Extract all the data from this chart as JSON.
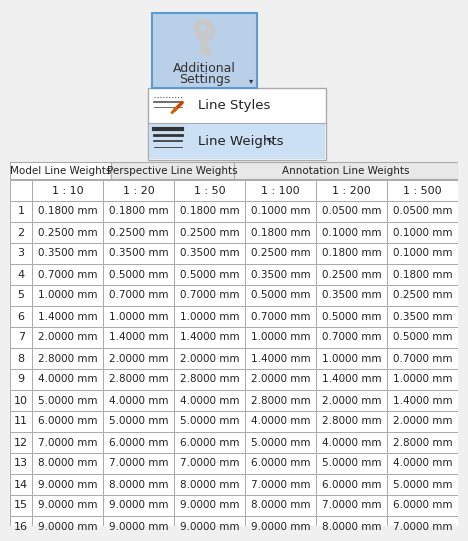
{
  "top_button_text_line1": "Additional",
  "top_button_text_line2": "Settings",
  "menu_item1": "Line Styles",
  "menu_item2": "Line Weights",
  "tabs": [
    "Model Line Weights",
    "Perspective Line Weights",
    "Annotation Line Weights"
  ],
  "col_headers": [
    "",
    "1 : 10",
    "1 : 20",
    "1 : 50",
    "1 : 100",
    "1 : 200",
    "1 : 500"
  ],
  "row_labels": [
    "1",
    "2",
    "3",
    "4",
    "5",
    "6",
    "7",
    "8",
    "9",
    "10",
    "11",
    "12",
    "13",
    "14",
    "15",
    "16"
  ],
  "table_data": [
    [
      "0.1800 mm",
      "0.1800 mm",
      "0.1800 mm",
      "0.1000 mm",
      "0.0500 mm",
      "0.0500 mm"
    ],
    [
      "0.2500 mm",
      "0.2500 mm",
      "0.2500 mm",
      "0.1800 mm",
      "0.1000 mm",
      "0.1000 mm"
    ],
    [
      "0.3500 mm",
      "0.3500 mm",
      "0.3500 mm",
      "0.2500 mm",
      "0.1800 mm",
      "0.1000 mm"
    ],
    [
      "0.7000 mm",
      "0.5000 mm",
      "0.5000 mm",
      "0.3500 mm",
      "0.2500 mm",
      "0.1800 mm"
    ],
    [
      "1.0000 mm",
      "0.7000 mm",
      "0.7000 mm",
      "0.5000 mm",
      "0.3500 mm",
      "0.2500 mm"
    ],
    [
      "1.4000 mm",
      "1.0000 mm",
      "1.0000 mm",
      "0.7000 mm",
      "0.5000 mm",
      "0.3500 mm"
    ],
    [
      "2.0000 mm",
      "1.4000 mm",
      "1.4000 mm",
      "1.0000 mm",
      "0.7000 mm",
      "0.5000 mm"
    ],
    [
      "2.8000 mm",
      "2.0000 mm",
      "2.0000 mm",
      "1.4000 mm",
      "1.0000 mm",
      "0.7000 mm"
    ],
    [
      "4.0000 mm",
      "2.8000 mm",
      "2.8000 mm",
      "2.0000 mm",
      "1.4000 mm",
      "1.0000 mm"
    ],
    [
      "5.0000 mm",
      "4.0000 mm",
      "4.0000 mm",
      "2.8000 mm",
      "2.0000 mm",
      "1.4000 mm"
    ],
    [
      "6.0000 mm",
      "5.0000 mm",
      "5.0000 mm",
      "4.0000 mm",
      "2.8000 mm",
      "2.0000 mm"
    ],
    [
      "7.0000 mm",
      "6.0000 mm",
      "6.0000 mm",
      "5.0000 mm",
      "4.0000 mm",
      "2.8000 mm"
    ],
    [
      "8.0000 mm",
      "7.0000 mm",
      "7.0000 mm",
      "6.0000 mm",
      "5.0000 mm",
      "4.0000 mm"
    ],
    [
      "9.0000 mm",
      "8.0000 mm",
      "8.0000 mm",
      "7.0000 mm",
      "6.0000 mm",
      "5.0000 mm"
    ],
    [
      "9.0000 mm",
      "9.0000 mm",
      "9.0000 mm",
      "8.0000 mm",
      "7.0000 mm",
      "6.0000 mm"
    ],
    [
      "9.0000 mm",
      "9.0000 mm",
      "9.0000 mm",
      "9.0000 mm",
      "8.0000 mm",
      "7.0000 mm"
    ]
  ],
  "btn_bg": "#bad0e8",
  "btn_border": "#5b9bd5",
  "menu_bg": "#ffffff",
  "menu_border": "#aaaaaa",
  "menu_hover_bg": "#cce0f5",
  "menu_hover_border": "#5b9bd5",
  "tab_bg": "#e8e8e8",
  "tab_border": "#aaaaaa",
  "cell_bg": "#ffffff",
  "cell_border": "#aaaaaa",
  "fig_bg": "#f0f0f0",
  "text_color": "#000000",
  "header_cell_bg": "#ffffff"
}
